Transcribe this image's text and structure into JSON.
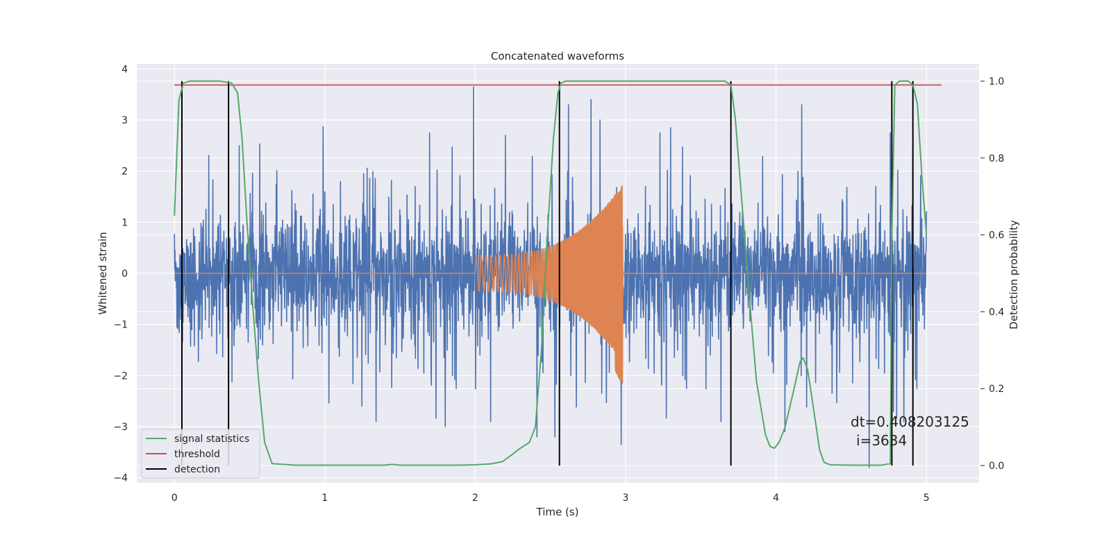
{
  "chart_data": {
    "type": "line",
    "title": "Concatenated waveforms",
    "xlabel": "Time (s)",
    "ylabel": "Whitened strain",
    "y2label": "Detection probability",
    "xlim": [
      -0.25,
      5.35
    ],
    "ylim": [
      -4.1,
      4.1
    ],
    "y2lim": [
      -0.045,
      1.045
    ],
    "x_ticks": [
      "0",
      "1",
      "2",
      "3",
      "4",
      "5"
    ],
    "x_tick_values": [
      0,
      1,
      2,
      3,
      4,
      5
    ],
    "y_ticks": [
      "4",
      "3",
      "2",
      "1",
      "0",
      "−1",
      "−2",
      "−3",
      "−4"
    ],
    "y_tick_values": [
      4,
      3,
      2,
      1,
      0,
      -1,
      -2,
      -3,
      -4
    ],
    "y2_ticks": [
      "1.0",
      "0.8",
      "0.6",
      "0.4",
      "0.2",
      "0.0"
    ],
    "y2_tick_values": [
      1.0,
      0.8,
      0.6,
      0.4,
      0.2,
      0.0
    ],
    "grid": true,
    "legend_position": "bottom-left",
    "annotation": {
      "line1": "dt=0.408203125",
      "line2": "i=3634"
    },
    "series": [
      {
        "name": "",
        "axis": "left",
        "kind": "noise",
        "color": "#4c72b0",
        "x_range": [
          0,
          5
        ],
        "typical_range": [
          -1.5,
          1.8
        ],
        "spikes": [
          [
            1.99,
            3.65
          ],
          [
            2.62,
            3.3
          ],
          [
            2.77,
            3.4
          ],
          [
            2.83,
            3.0
          ],
          [
            0.43,
            2.5
          ],
          [
            2.2,
            2.7
          ],
          [
            3.3,
            2.85
          ],
          [
            4.17,
            3.3
          ],
          [
            1.8,
            -3.0
          ],
          [
            2.97,
            -3.35
          ],
          [
            4.06,
            -3.1
          ],
          [
            2.41,
            -3.2
          ],
          [
            2.53,
            -3.2
          ],
          [
            4.62,
            -3.8
          ],
          [
            0.05,
            -2.7
          ],
          [
            1.34,
            -2.9
          ],
          [
            4.78,
            -2.7
          ],
          [
            4.85,
            -2.9
          ]
        ]
      },
      {
        "name": "",
        "axis": "left",
        "kind": "chirp",
        "color": "#dd8452",
        "x_range": [
          0,
          5
        ],
        "chirp_x_range": [
          2.0,
          2.98
        ],
        "amplitude_start": 0.35,
        "amplitude_peak": 1.75,
        "amplitude_min": -2.15
      },
      {
        "name": "signal statistics",
        "axis": "right",
        "color": "#55a868",
        "x": [
          0.0,
          0.03,
          0.06,
          0.1,
          0.2,
          0.3,
          0.38,
          0.42,
          0.45,
          0.48,
          0.52,
          0.56,
          0.6,
          0.65,
          0.8,
          1.0,
          1.2,
          1.4,
          1.45,
          1.5,
          1.7,
          1.9,
          2.0,
          2.1,
          2.18,
          2.25,
          2.3,
          2.36,
          2.4,
          2.44,
          2.48,
          2.52,
          2.55,
          2.57,
          2.6,
          2.65,
          2.8,
          3.0,
          3.2,
          3.4,
          3.6,
          3.66,
          3.7,
          3.73,
          3.77,
          3.82,
          3.87,
          3.93,
          3.96,
          3.99,
          4.02,
          4.06,
          4.12,
          4.16,
          4.18,
          4.21,
          4.26,
          4.29,
          4.32,
          4.36,
          4.5,
          4.7,
          4.76,
          4.77,
          4.79,
          4.82,
          4.88,
          4.91,
          4.94,
          4.97,
          5.0
        ],
        "y": [
          0.65,
          0.95,
          0.995,
          1.0,
          1.0,
          1.0,
          0.995,
          0.97,
          0.85,
          0.65,
          0.42,
          0.22,
          0.06,
          0.005,
          0.001,
          0.001,
          0.001,
          0.001,
          0.003,
          0.001,
          0.001,
          0.001,
          0.002,
          0.004,
          0.01,
          0.03,
          0.045,
          0.06,
          0.1,
          0.3,
          0.6,
          0.85,
          0.97,
          0.995,
          1.0,
          1.0,
          1.0,
          1.0,
          1.0,
          1.0,
          1.0,
          1.0,
          0.99,
          0.9,
          0.7,
          0.45,
          0.22,
          0.08,
          0.05,
          0.045,
          0.06,
          0.1,
          0.2,
          0.27,
          0.28,
          0.25,
          0.12,
          0.04,
          0.008,
          0.002,
          0.001,
          0.001,
          0.005,
          0.6,
          0.99,
          1.0,
          1.0,
          0.99,
          0.94,
          0.75,
          0.6
        ]
      },
      {
        "name": "threshold",
        "axis": "right",
        "color": "#c44e52",
        "x": [
          0.0,
          5.1
        ],
        "y": [
          0.99,
          0.99
        ]
      }
    ],
    "detections": {
      "name": "detection",
      "color": "#000000",
      "x": [
        0.05,
        0.36,
        2.56,
        3.7,
        4.77,
        4.91
      ],
      "ymin": 0.0,
      "ymax": 1.0
    }
  }
}
